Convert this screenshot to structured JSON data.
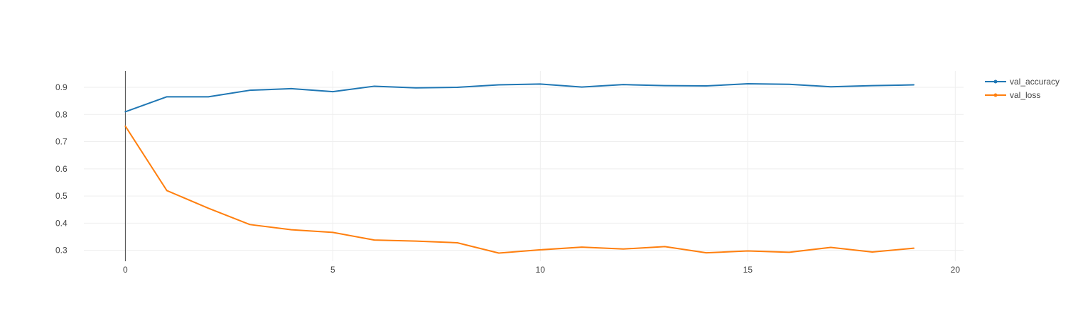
{
  "chart_data": {
    "type": "line",
    "title": "",
    "xlabel": "",
    "ylabel": "",
    "xlim": [
      -1,
      20.2
    ],
    "ylim": [
      0.26,
      0.96
    ],
    "x_ticks": [
      0,
      5,
      10,
      15,
      20
    ],
    "y_ticks": [
      0.3,
      0.4,
      0.5,
      0.6,
      0.7,
      0.8,
      0.9
    ],
    "grid": true,
    "legend_position": "top-right",
    "x": [
      0,
      1,
      2,
      3,
      4,
      5,
      6,
      7,
      8,
      9,
      10,
      11,
      12,
      13,
      14,
      15,
      16,
      17,
      18,
      19
    ],
    "series": [
      {
        "name": "val_accuracy",
        "color": "#1f77b4",
        "values": [
          0.81,
          0.865,
          0.865,
          0.889,
          0.895,
          0.884,
          0.904,
          0.898,
          0.9,
          0.909,
          0.912,
          0.901,
          0.91,
          0.906,
          0.905,
          0.913,
          0.911,
          0.902,
          0.906,
          0.909
        ]
      },
      {
        "name": "val_loss",
        "color": "#ff7f0e",
        "values": [
          0.757,
          0.52,
          0.455,
          0.395,
          0.376,
          0.366,
          0.338,
          0.334,
          0.328,
          0.29,
          0.302,
          0.312,
          0.305,
          0.314,
          0.291,
          0.298,
          0.293,
          0.311,
          0.294,
          0.308
        ]
      }
    ]
  }
}
